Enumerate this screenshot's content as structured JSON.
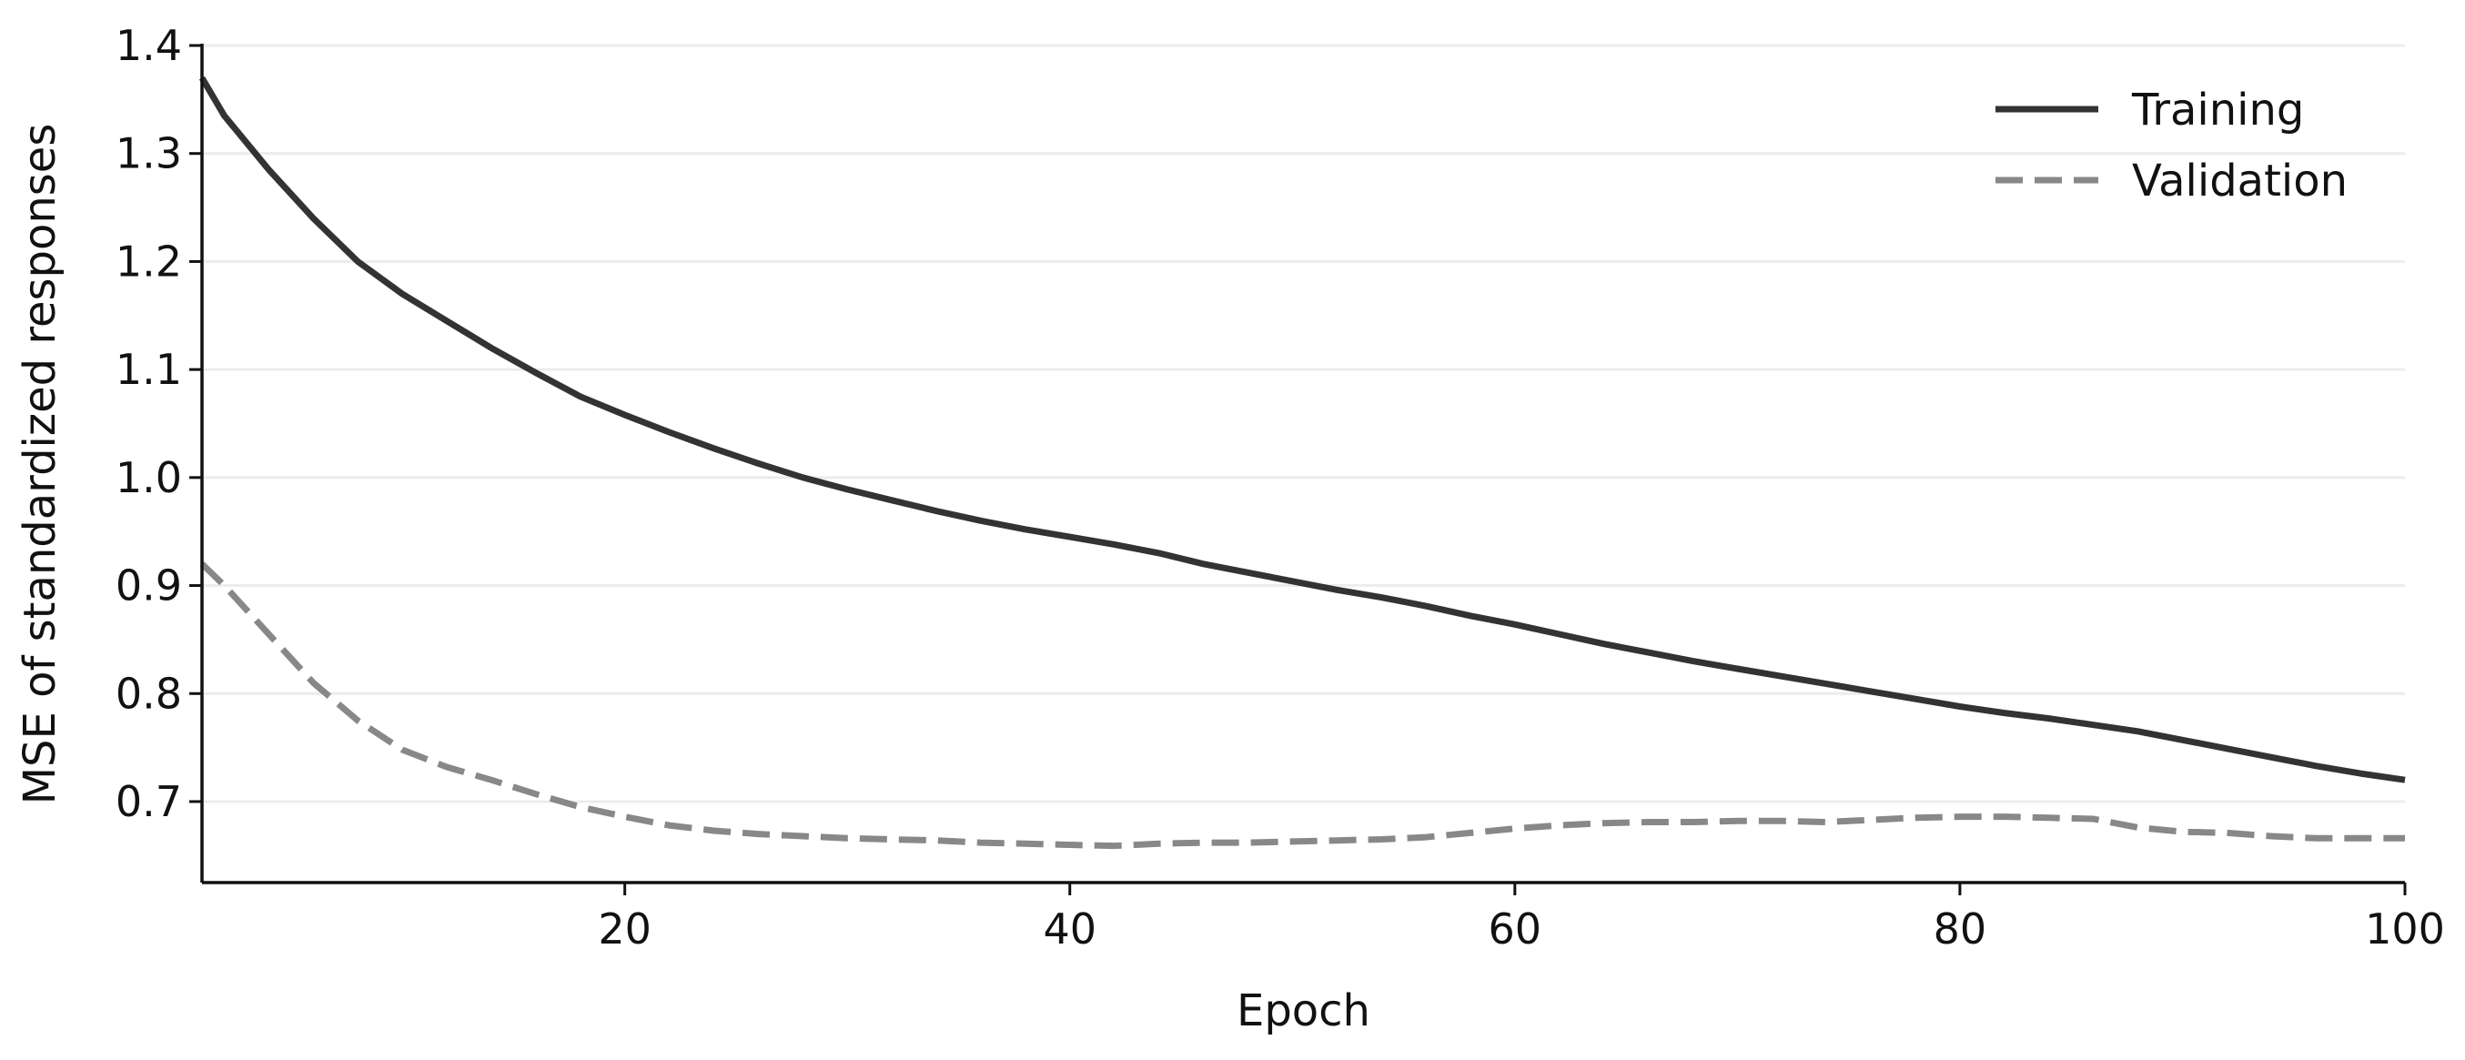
{
  "chart_data": {
    "type": "line",
    "title": "",
    "xlabel": "Epoch",
    "ylabel": "MSE of standardized responses",
    "xlim": [
      1,
      100
    ],
    "ylim": [
      0.625,
      1.4
    ],
    "xticks": [
      20,
      40,
      60,
      80,
      100
    ],
    "xtick_labels": [
      "20",
      "40",
      "60",
      "80",
      "100"
    ],
    "yticks": [
      0.7,
      0.8,
      0.9,
      1.0,
      1.1,
      1.2,
      1.3,
      1.4
    ],
    "ytick_labels": [
      "0.7",
      "0.8",
      "0.9",
      "1.0",
      "1.1",
      "1.2",
      "1.3",
      "1.4"
    ],
    "grid": "horizontal",
    "legend_position": "top-right",
    "series": [
      {
        "name": "Training",
        "color": "#333333",
        "style": "solid",
        "x": [
          1,
          2,
          4,
          6,
          8,
          10,
          12,
          14,
          16,
          18,
          20,
          22,
          24,
          26,
          28,
          30,
          32,
          34,
          36,
          38,
          40,
          42,
          44,
          46,
          48,
          50,
          52,
          54,
          56,
          58,
          60,
          62,
          64,
          66,
          68,
          70,
          72,
          74,
          76,
          78,
          80,
          82,
          84,
          86,
          88,
          90,
          92,
          94,
          96,
          98,
          100
        ],
        "y": [
          1.37,
          1.335,
          1.285,
          1.24,
          1.2,
          1.17,
          1.145,
          1.12,
          1.097,
          1.075,
          1.058,
          1.042,
          1.027,
          1.013,
          1.0,
          0.989,
          0.979,
          0.969,
          0.96,
          0.952,
          0.945,
          0.938,
          0.93,
          0.92,
          0.912,
          0.904,
          0.896,
          0.889,
          0.881,
          0.872,
          0.864,
          0.855,
          0.846,
          0.838,
          0.83,
          0.823,
          0.816,
          0.809,
          0.802,
          0.795,
          0.788,
          0.782,
          0.777,
          0.771,
          0.765,
          0.757,
          0.749,
          0.741,
          0.733,
          0.726,
          0.72
        ]
      },
      {
        "name": "Validation",
        "color": "#888888",
        "style": "dashed",
        "x": [
          1,
          2,
          4,
          6,
          8,
          10,
          12,
          14,
          16,
          18,
          20,
          22,
          24,
          26,
          28,
          30,
          32,
          34,
          36,
          38,
          40,
          42,
          44,
          46,
          48,
          50,
          52,
          54,
          56,
          58,
          60,
          62,
          64,
          66,
          68,
          70,
          72,
          74,
          76,
          78,
          80,
          82,
          84,
          86,
          88,
          90,
          92,
          94,
          96,
          98,
          100
        ],
        "y": [
          0.92,
          0.9,
          0.855,
          0.81,
          0.775,
          0.748,
          0.732,
          0.72,
          0.707,
          0.695,
          0.686,
          0.678,
          0.673,
          0.67,
          0.668,
          0.666,
          0.665,
          0.664,
          0.662,
          0.661,
          0.66,
          0.659,
          0.661,
          0.662,
          0.662,
          0.663,
          0.664,
          0.665,
          0.667,
          0.671,
          0.675,
          0.678,
          0.68,
          0.681,
          0.681,
          0.682,
          0.682,
          0.681,
          0.683,
          0.685,
          0.686,
          0.686,
          0.685,
          0.684,
          0.676,
          0.672,
          0.671,
          0.668,
          0.666,
          0.666,
          0.666
        ]
      }
    ]
  }
}
